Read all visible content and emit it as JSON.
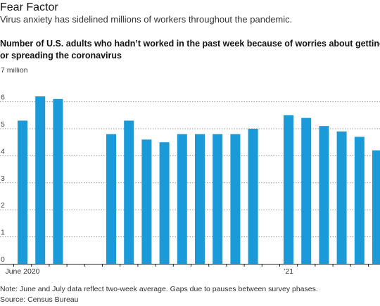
{
  "header": {
    "title": "Fear Factor",
    "subtitle": "Virus anxiety has sidelined millions of workers throughout the pandemic."
  },
  "chart_data": {
    "type": "bar",
    "title_lines": [
      "Number of U.S. adults who hadn’t worked in the past week because of worries about getting",
      "or spreading the coronavirus"
    ],
    "y_unit_label": "7 million",
    "ylim": [
      0,
      7
    ],
    "y_ticks": [
      0,
      1,
      2,
      3,
      4,
      5,
      6
    ],
    "grid": true,
    "color": "#1a9ad9",
    "values": [
      5.3,
      6.2,
      6.1,
      null,
      null,
      4.8,
      5.3,
      4.6,
      4.5,
      4.8,
      4.8,
      4.8,
      4.8,
      5.0,
      null,
      5.5,
      5.4,
      5.1,
      4.9,
      4.7,
      4.2
    ],
    "x_labels": [
      {
        "index": 0,
        "text": "June 2020"
      },
      {
        "index": 15,
        "text": "’21"
      }
    ]
  },
  "footer": {
    "note": "Note: June and July data reflect two-week average. Gaps due to pauses between survey phases.",
    "source": "Source: Census Bureau"
  }
}
